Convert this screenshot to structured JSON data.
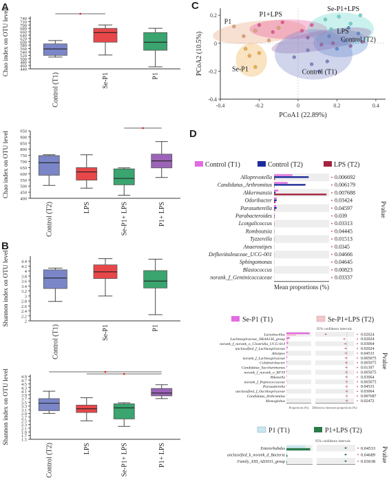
{
  "panel_letters": [
    "A",
    "B",
    "C",
    "D"
  ],
  "colors": {
    "blue": "#7b86c8",
    "red": "#e8474a",
    "green": "#3aa56f",
    "purple": "#9b64b8",
    "pink": "#e36be0",
    "navy": "#1c2c9a",
    "maroon": "#a3223d",
    "lightblue": "#c9e6f2",
    "darkgreen": "#2b7a49",
    "lightpink": "#f4c6cc"
  },
  "chart_data": [
    {
      "type": "box",
      "panel": "A",
      "ylabel": "Chao index on OTU level",
      "ylim": [
        440,
        750
      ],
      "yticks": [
        440,
        460,
        480,
        500,
        520,
        540,
        560,
        580,
        600,
        620,
        640,
        660,
        680,
        700,
        720,
        740
      ],
      "categories": [
        "Control (T1)",
        "Se-P1",
        "P1"
      ],
      "boxes": [
        {
          "min": 510,
          "q1": 520,
          "median": 558,
          "q3": 588,
          "max": 608,
          "color": "blue"
        },
        {
          "min": 522,
          "q1": 598,
          "median": 655,
          "q3": 680,
          "max": 700,
          "color": "red"
        },
        {
          "min": 452,
          "q1": 550,
          "median": 598,
          "q3": 655,
          "max": 680,
          "color": "green"
        }
      ],
      "significance": [
        {
          "from": 0,
          "to": 1
        }
      ]
    },
    {
      "type": "box",
      "panel": "A",
      "ylabel": "Chao index on OTU level",
      "ylim": [
        400,
        950
      ],
      "yticks": [
        400,
        450,
        500,
        550,
        600,
        650,
        700,
        750,
        800,
        850,
        900,
        950
      ],
      "categories": [
        "Control (T2)",
        "LPS",
        "Se-P1+ LPS",
        "P1+ LPS"
      ],
      "boxes": [
        {
          "min": 505,
          "q1": 588,
          "median": 690,
          "q3": 748,
          "max": 755,
          "color": "blue"
        },
        {
          "min": 483,
          "q1": 548,
          "median": 615,
          "q3": 650,
          "max": 755,
          "color": "red"
        },
        {
          "min": 425,
          "q1": 510,
          "median": 562,
          "q3": 640,
          "max": 648,
          "color": "green"
        },
        {
          "min": 570,
          "q1": 648,
          "median": 705,
          "q3": 760,
          "max": 862,
          "color": "purple"
        }
      ],
      "significance": [
        {
          "from": 2,
          "to": 3
        }
      ]
    },
    {
      "type": "box",
      "panel": "B",
      "ylabel": "Shannon index on OTU level",
      "ylim": [
        2,
        4.6
      ],
      "yticks": [
        2,
        2.2,
        2.4,
        2.6,
        2.8,
        3,
        3.2,
        3.4,
        3.6,
        3.8,
        4,
        4.2,
        4.4
      ],
      "categories": [
        "Control (T1)",
        "Se-P1",
        "P1"
      ],
      "boxes": [
        {
          "min": 2.78,
          "q1": 3.3,
          "median": 3.72,
          "q3": 4.05,
          "max": 4.12,
          "color": "blue"
        },
        {
          "min": 3.0,
          "q1": 3.7,
          "median": 3.97,
          "q3": 4.25,
          "max": 4.5,
          "color": "red"
        },
        {
          "min": 2.25,
          "q1": 3.32,
          "median": 3.6,
          "q3": 4.02,
          "max": 4.48,
          "color": "green"
        }
      ]
    },
    {
      "type": "box",
      "panel": "B",
      "ylabel": "Shannon index on OTU level",
      "ylim": [
        1.5,
        5
      ],
      "yticks": [
        1.5,
        1.7,
        1.9,
        2.1,
        2.3,
        2.5,
        2.7,
        2.9,
        3.1,
        3.3,
        3.5,
        3.7,
        3.9,
        4.1,
        4.3,
        4.5,
        4.7,
        4.9
      ],
      "categories": [
        "Control (T2)",
        "LPS",
        "Se-P1+ LPS",
        "P1+ LPS"
      ],
      "boxes": [
        {
          "min": 2.9,
          "q1": 3.05,
          "median": 3.45,
          "q3": 3.7,
          "max": 4.1,
          "color": "blue"
        },
        {
          "min": 2.5,
          "q1": 2.95,
          "median": 3.15,
          "q3": 3.35,
          "max": 3.75,
          "color": "red"
        },
        {
          "min": 2.2,
          "q1": 2.6,
          "median": 3.2,
          "q3": 3.42,
          "max": 3.48,
          "color": "green"
        },
        {
          "min": 3.7,
          "q1": 3.85,
          "median": 4.0,
          "q3": 4.25,
          "max": 4.45,
          "color": "purple"
        }
      ],
      "significance": [
        {
          "from": 0,
          "to": 3
        },
        {
          "from": 1,
          "to": 3
        }
      ]
    },
    {
      "type": "scatter",
      "panel": "C",
      "xlabel": "PCoA1 (22.89%)",
      "ylabel": "PCoA2 (10.5%)",
      "xlim": [
        -0.4,
        0.45
      ],
      "ylim": [
        -0.4,
        0.25
      ],
      "xticks": [
        -0.4,
        -0.2,
        0,
        0.2,
        0.4
      ],
      "yticks": [
        -0.4,
        -0.2,
        0,
        0.2
      ],
      "groups": [
        {
          "label": "P1",
          "color": "#e9a47a"
        },
        {
          "label": "P1+LPS",
          "color": "#e85a9a"
        },
        {
          "label": "Se-P1+LPS",
          "color": "#6bd7cf"
        },
        {
          "label": "LPS",
          "color": "#5d8fd3"
        },
        {
          "label": "Control (T2)",
          "color": "#9a6ba8"
        },
        {
          "label": "Se-P1",
          "color": "#f2b04a"
        },
        {
          "label": "Control (T1)",
          "color": "#7b86c8"
        }
      ]
    },
    {
      "type": "bar",
      "panel": "D",
      "legend": [
        {
          "name": "Control (T1)",
          "color": "pink"
        },
        {
          "name": "Control (T2)",
          "color": "navy"
        },
        {
          "name": "LPS (T2)",
          "color": "maroon"
        }
      ],
      "xlabel": "Mean proportions (%)",
      "right_label": "Pvalue",
      "categories": [
        "Alloprevotella",
        "Candidatus_Arthromitus",
        "Akkermansia",
        "Odoribacter",
        "Parasutterella",
        "Parabacteroides",
        "Lcotgalicoccus",
        "Romboutsia",
        "Tyzzerella",
        "Anaerostipes",
        "Defluviitaleaceae_UCG-001",
        "Sphingomonas",
        "Blastococcus",
        "norank_f_Geminicoccaceae"
      ],
      "pvalues": [
        "0.006692",
        "0.006179",
        "0.007688",
        "0.03424",
        "0.04597",
        "0.039",
        "0.03313",
        "0.04445",
        "0.01513",
        "0.0345",
        "0.04666",
        "0.04645",
        "0.00823",
        "0.03337"
      ],
      "series": [
        {
          "name": "Control (T1)",
          "values": [
            3.5,
            2.6,
            0.8,
            0.5,
            0.4,
            0.1,
            0.05,
            0.05,
            0.04,
            0.03,
            0.03,
            0.03,
            0.02,
            0.02
          ]
        },
        {
          "name": "Control (T2)",
          "values": [
            6.6,
            6.0,
            0.3,
            0.5,
            0.5,
            0.1,
            0.05,
            0.05,
            0.04,
            0.03,
            0.03,
            0.03,
            0.02,
            0.02
          ]
        },
        {
          "name": "LPS (T2)",
          "values": [
            0.2,
            0.1,
            10.0,
            0.3,
            0.2,
            0.1,
            0.05,
            0.05,
            0.04,
            0.03,
            0.03,
            0.03,
            0.02,
            0.02
          ]
        }
      ]
    },
    {
      "type": "bar",
      "panel": "D",
      "legend": [
        {
          "name": "Se-P1 (T1)",
          "color": "pink"
        },
        {
          "name": "Se-P1+LPS (T2)",
          "color": "lightpink"
        }
      ],
      "ci_label": "95% confidence intervals",
      "xlabel": "Proportions (%)",
      "xlabel2": "Difference between proportions (%)",
      "right_label": "Pvalue",
      "categories": [
        "Lactobacillus",
        "Lachnospiraceae_NK4A136_group",
        "norank_f_norank_o_Clostridia_UCG-014",
        "unclassified_f_Lachnospiraceae",
        "Alistipes",
        "norank_f_Lachnospiraceae",
        "Colidextribacter",
        "Candidatus_Saccharimonas",
        "norank_f_norank_o_RF39",
        "Rikenella",
        "norank_f_Peptococcaceae",
        "Parasutterella",
        "unclassified_f_Oscillospiraceae",
        "Candidatus_Arthromitus",
        "Monoglobus"
      ],
      "pvalues": [
        "0.02024",
        "0.02024",
        "0.03064",
        "0.02024",
        "0.04533",
        "0.005075",
        "0.005075",
        "0.01307",
        "0.005075",
        "0.03064",
        "0.005075",
        "0.04533",
        "0.03064",
        "0.007687",
        "0.02472"
      ],
      "series": [
        {
          "name": "Se-P1 (T1)",
          "values": [
            28,
            4,
            2,
            1.5,
            1.2,
            1,
            0.8,
            0.7,
            0.6,
            0.5,
            0.4,
            0.4,
            0.3,
            0.3,
            0.2
          ]
        },
        {
          "name": "Se-P1+LPS (T2)",
          "values": [
            12,
            2,
            0.8,
            0.6,
            0.5,
            0.4,
            0.3,
            0.3,
            0.2,
            0.2,
            0.2,
            0.2,
            0.1,
            0.1,
            0.1
          ]
        }
      ]
    },
    {
      "type": "bar",
      "panel": "D",
      "legend": [
        {
          "name": "P1 (T1)",
          "color": "lightblue"
        },
        {
          "name": "P1+LPS (T2)",
          "color": "darkgreen"
        }
      ],
      "ci_label": "95% confidence intervals",
      "right_label": "Pvalue",
      "categories": [
        "Enterorhabdus",
        "unclassified_k_norank_d_Bacteria",
        "Family_XIII_AD3011_group"
      ],
      "pvalues": [
        "0.04533",
        "0.04689",
        "0.03638"
      ],
      "series": [
        {
          "name": "P1 (T1)",
          "values": [
            8,
            0.3,
            0.2
          ]
        },
        {
          "name": "P1+LPS (T2)",
          "values": [
            10,
            0.4,
            0.2
          ]
        }
      ]
    }
  ]
}
